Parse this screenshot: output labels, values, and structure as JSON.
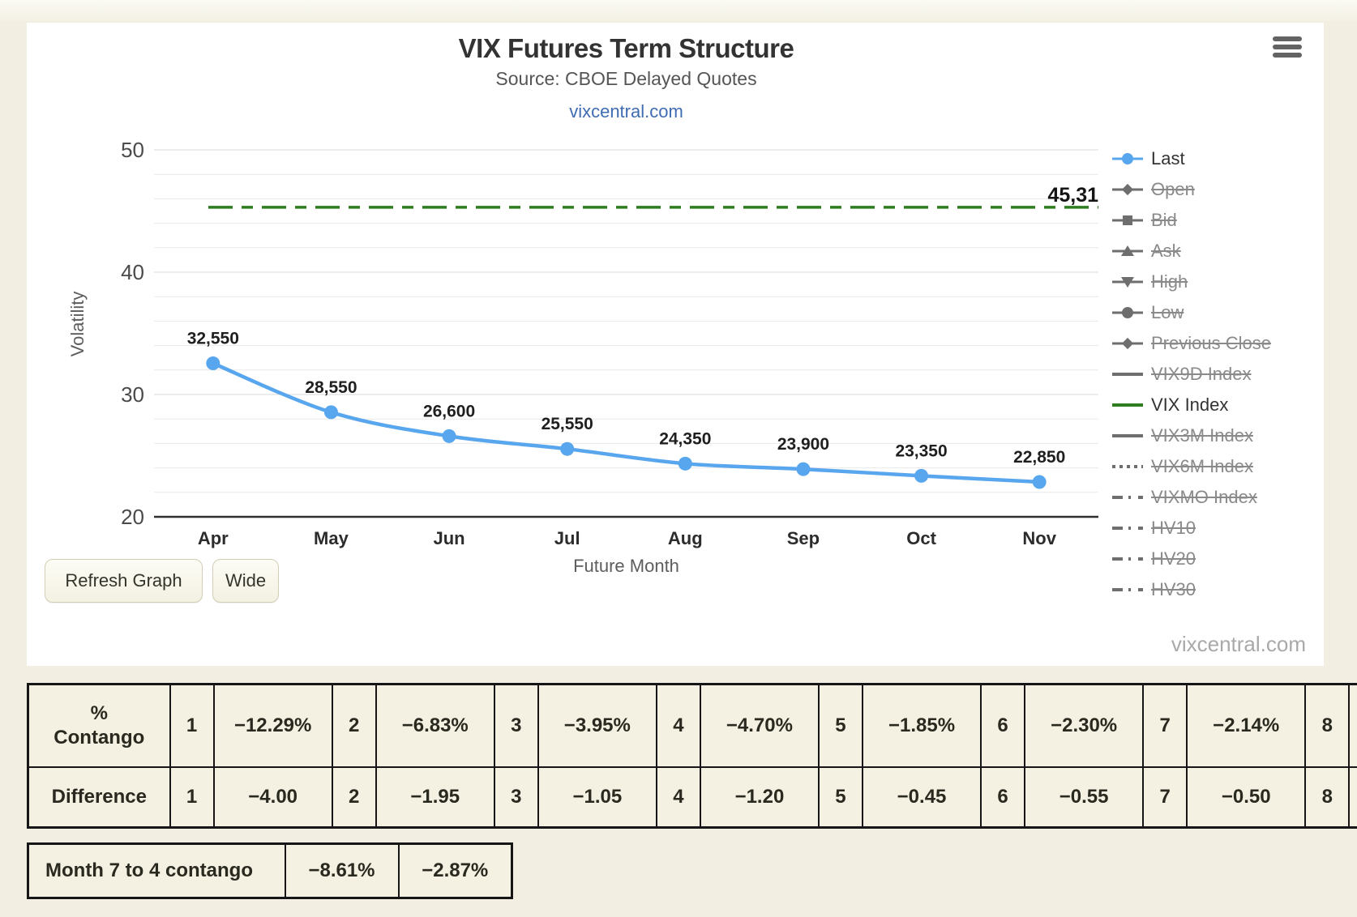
{
  "chart_data": {
    "type": "line",
    "title": "VIX Futures Term Structure",
    "subtitle": "Source: CBOE Delayed Quotes",
    "link": "vixcentral.com",
    "xlabel": "Future Month",
    "ylabel": "Volatility",
    "ylim": [
      20,
      50
    ],
    "yticks": [
      20,
      30,
      40,
      50
    ],
    "grid": true,
    "legend_position": "right",
    "categories": [
      "Apr",
      "May",
      "Jun",
      "Jul",
      "Aug",
      "Sep",
      "Oct",
      "Nov"
    ],
    "series": [
      {
        "name": "Last",
        "color": "#58a6ee",
        "values": [
          32.55,
          28.55,
          26.6,
          25.55,
          24.35,
          23.9,
          23.35,
          22.85
        ],
        "data_labels": [
          "32,550",
          "28,550",
          "26,600",
          "25,550",
          "24,350",
          "23,900",
          "23,350",
          "22,850"
        ]
      }
    ],
    "reference_line": {
      "name": "VIX Index",
      "value": 45.31,
      "label": "45,31",
      "color": "#2e7d1e",
      "style": "dashed"
    },
    "legend": [
      {
        "label": "Last",
        "type": "circle",
        "color": "#58a6ee",
        "enabled": true
      },
      {
        "label": "Open",
        "type": "diamond",
        "color": "#6e6e6e",
        "enabled": false
      },
      {
        "label": "Bid",
        "type": "square",
        "color": "#6e6e6e",
        "enabled": false
      },
      {
        "label": "Ask",
        "type": "triangle-up",
        "color": "#6e6e6e",
        "enabled": false
      },
      {
        "label": "High",
        "type": "triangle-down",
        "color": "#6e6e6e",
        "enabled": false
      },
      {
        "label": "Low",
        "type": "circle",
        "color": "#6e6e6e",
        "enabled": false
      },
      {
        "label": "Previous Close",
        "type": "diamond",
        "color": "#6e6e6e",
        "enabled": false
      },
      {
        "label": "VIX9D Index",
        "type": "solid",
        "color": "#6e6e6e",
        "enabled": false
      },
      {
        "label": "VIX Index",
        "type": "solid",
        "color": "#2e7d1e",
        "enabled": true
      },
      {
        "label": "VIX3M Index",
        "type": "solid",
        "color": "#6e6e6e",
        "enabled": false
      },
      {
        "label": "VIX6M Index",
        "type": "dotted",
        "color": "#6e6e6e",
        "enabled": false
      },
      {
        "label": "VIXMO Index",
        "type": "dashdot",
        "color": "#6e6e6e",
        "enabled": false
      },
      {
        "label": "HV10",
        "type": "dashdot",
        "color": "#6e6e6e",
        "enabled": false
      },
      {
        "label": "HV20",
        "type": "dashdot",
        "color": "#6e6e6e",
        "enabled": false
      },
      {
        "label": "HV30",
        "type": "dashdot",
        "color": "#6e6e6e",
        "enabled": false
      }
    ]
  },
  "ui": {
    "menu_icon": "hamburger-icon",
    "buttons": {
      "refresh": "Refresh Graph",
      "wide": "Wide"
    },
    "watermark": "vixcentral.com",
    "colors": {
      "page_background": "#f2efe2",
      "card_background": "#ffffff",
      "accent_blue": "#58a6ee",
      "accent_green": "#2e7d1e",
      "table_background": "#f4f1e2"
    }
  },
  "tables": {
    "contango": {
      "rows": [
        {
          "label_lines": [
            "%",
            "Contango"
          ],
          "pairs": [
            [
              "1",
              "−12.29%"
            ],
            [
              "2",
              "−6.83%"
            ],
            [
              "3",
              "−3.95%"
            ],
            [
              "4",
              "−4.70%"
            ],
            [
              "5",
              "−1.85%"
            ],
            [
              "6",
              "−2.30%"
            ],
            [
              "7",
              "−2.14%"
            ],
            [
              "8",
              ""
            ]
          ]
        },
        {
          "label_lines": [
            "Difference"
          ],
          "pairs": [
            [
              "1",
              "−4.00"
            ],
            [
              "2",
              "−1.95"
            ],
            [
              "3",
              "−1.05"
            ],
            [
              "4",
              "−1.20"
            ],
            [
              "5",
              "−0.45"
            ],
            [
              "6",
              "−0.55"
            ],
            [
              "7",
              "−0.50"
            ],
            [
              "8",
              ""
            ]
          ]
        }
      ]
    },
    "month_contango": {
      "label": "Month 7 to 4 contango",
      "values": [
        "−8.61%",
        "−2.87%"
      ]
    }
  }
}
